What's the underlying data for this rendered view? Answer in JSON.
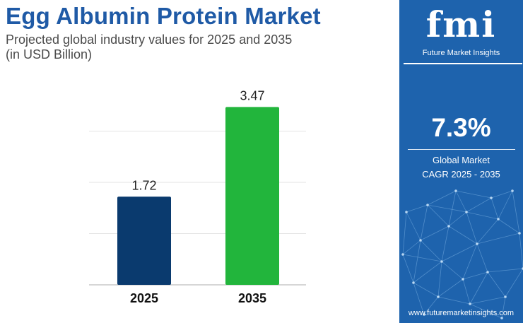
{
  "header": {
    "title": "Egg Albumin Protein Market",
    "subtitle_line1": "Projected global industry values for 2025 and 2035",
    "subtitle_line2": "(in USD Billion)"
  },
  "chart_data": {
    "type": "bar",
    "categories": [
      "2025",
      "2035"
    ],
    "values": [
      1.72,
      3.47
    ],
    "value_labels": [
      "1.72",
      "3.47"
    ],
    "bar_colors": [
      "#0a3a6e",
      "#22b53c"
    ],
    "ylim": [
      0,
      4
    ],
    "gridlines": [
      1,
      2,
      3
    ],
    "grid": true,
    "title": "",
    "xlabel": "",
    "ylabel": ""
  },
  "sidebar": {
    "logo_text": "fmi",
    "logo_subtitle": "Future Market Insights",
    "cagr_value": "7.3%",
    "cagr_label_line1": "Global Market",
    "cagr_label_line2": "CAGR 2025 - 2035",
    "website": "www.futuremarketinsights.com",
    "background_color": "#1e63ad"
  }
}
